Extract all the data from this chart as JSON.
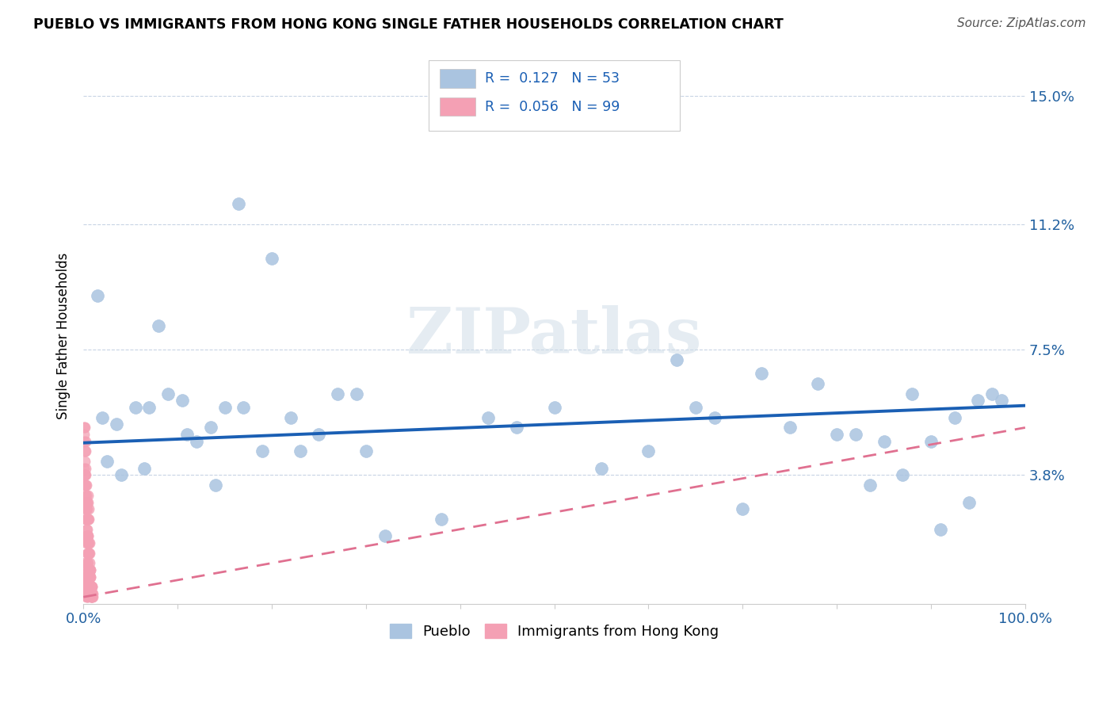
{
  "title": "PUEBLO VS IMMIGRANTS FROM HONG KONG SINGLE FATHER HOUSEHOLDS CORRELATION CHART",
  "source": "Source: ZipAtlas.com",
  "ylabel": "Single Father Households",
  "xlim": [
    0,
    100
  ],
  "ylim": [
    0,
    15.8
  ],
  "ytick_positions": [
    0,
    3.8,
    7.5,
    11.2,
    15.0
  ],
  "ytick_labels": [
    "",
    "3.8%",
    "7.5%",
    "11.2%",
    "15.0%"
  ],
  "pueblo_R": "0.127",
  "pueblo_N": "53",
  "hk_R": "0.056",
  "hk_N": "99",
  "pueblo_color": "#aac4e0",
  "hk_color": "#f4a0b4",
  "pueblo_line_color": "#1a5fb4",
  "hk_line_color": "#e07090",
  "watermark_text": "ZIPatlas",
  "pueblo_x": [
    1.5,
    2.0,
    3.5,
    5.5,
    7.0,
    8.0,
    9.0,
    10.5,
    12.0,
    13.5,
    15.0,
    17.0,
    19.0,
    20.0,
    22.0,
    25.0,
    27.0,
    29.0,
    32.0,
    38.0,
    43.0,
    50.0,
    55.0,
    60.0,
    63.0,
    67.0,
    70.0,
    72.0,
    75.0,
    78.0,
    80.0,
    82.0,
    83.5,
    85.0,
    87.0,
    88.0,
    90.0,
    91.0,
    92.5,
    94.0,
    95.0,
    96.5,
    97.5,
    2.5,
    4.0,
    6.5,
    11.0,
    14.0,
    16.5,
    23.0,
    30.0,
    46.0,
    65.0
  ],
  "pueblo_y": [
    9.1,
    5.5,
    5.3,
    5.8,
    5.8,
    8.2,
    6.2,
    6.0,
    4.8,
    5.2,
    5.8,
    5.8,
    4.5,
    10.2,
    5.5,
    5.0,
    6.2,
    6.2,
    2.0,
    2.5,
    5.5,
    5.8,
    4.0,
    4.5,
    7.2,
    5.5,
    2.8,
    6.8,
    5.2,
    6.5,
    5.0,
    5.0,
    3.5,
    4.8,
    3.8,
    6.2,
    4.8,
    2.2,
    5.5,
    3.0,
    6.0,
    6.2,
    6.0,
    4.2,
    3.8,
    4.0,
    5.0,
    3.5,
    11.8,
    4.5,
    4.5,
    5.2,
    5.8
  ],
  "hk_x": [
    0.05,
    0.08,
    0.1,
    0.1,
    0.12,
    0.12,
    0.15,
    0.15,
    0.15,
    0.18,
    0.18,
    0.2,
    0.2,
    0.2,
    0.22,
    0.22,
    0.25,
    0.25,
    0.25,
    0.28,
    0.28,
    0.3,
    0.3,
    0.3,
    0.32,
    0.32,
    0.35,
    0.35,
    0.35,
    0.38,
    0.38,
    0.4,
    0.4,
    0.4,
    0.42,
    0.42,
    0.45,
    0.45,
    0.45,
    0.48,
    0.48,
    0.5,
    0.5,
    0.5,
    0.52,
    0.52,
    0.55,
    0.55,
    0.55,
    0.58,
    0.58,
    0.6,
    0.6,
    0.6,
    0.62,
    0.62,
    0.65,
    0.65,
    0.68,
    0.68,
    0.7,
    0.7,
    0.72,
    0.75,
    0.75,
    0.78,
    0.78,
    0.8,
    0.8,
    0.82,
    0.82,
    0.85,
    0.85,
    0.88,
    0.88,
    0.9,
    0.9,
    0.92,
    0.92,
    0.95,
    0.95,
    0.05,
    0.08,
    0.1,
    0.12,
    0.15,
    0.18,
    0.2,
    0.22,
    0.25,
    0.28,
    0.3,
    0.32,
    0.35,
    0.38,
    0.4,
    0.42,
    0.45,
    0.48
  ],
  "hk_y": [
    5.0,
    4.8,
    4.0,
    5.2,
    3.8,
    4.5,
    3.5,
    4.2,
    3.0,
    3.8,
    5.2,
    3.5,
    4.8,
    2.8,
    3.2,
    4.0,
    2.5,
    3.8,
    4.5,
    3.0,
    2.2,
    2.8,
    3.5,
    3.2,
    2.0,
    2.8,
    2.5,
    3.0,
    1.8,
    2.2,
    1.5,
    2.8,
    3.0,
    2.5,
    1.2,
    2.0,
    1.8,
    2.5,
    3.2,
    2.0,
    1.5,
    2.5,
    1.8,
    3.0,
    1.2,
    2.0,
    1.5,
    2.8,
    1.0,
    1.8,
    0.8,
    2.5,
    1.5,
    1.0,
    0.8,
    1.5,
    1.0,
    1.8,
    0.8,
    1.2,
    1.0,
    0.5,
    0.8,
    0.5,
    1.0,
    0.5,
    0.8,
    0.2,
    0.5,
    0.5,
    0.2,
    0.2,
    0.5,
    0.3,
    0.2,
    0.5,
    0.2,
    0.3,
    0.5,
    0.2,
    0.3,
    0.5,
    0.8,
    1.0,
    1.2,
    0.8,
    0.5,
    0.3,
    0.8,
    1.0,
    0.5,
    0.2,
    0.8,
    0.5,
    0.3,
    0.2,
    0.5,
    0.3,
    0.2
  ]
}
